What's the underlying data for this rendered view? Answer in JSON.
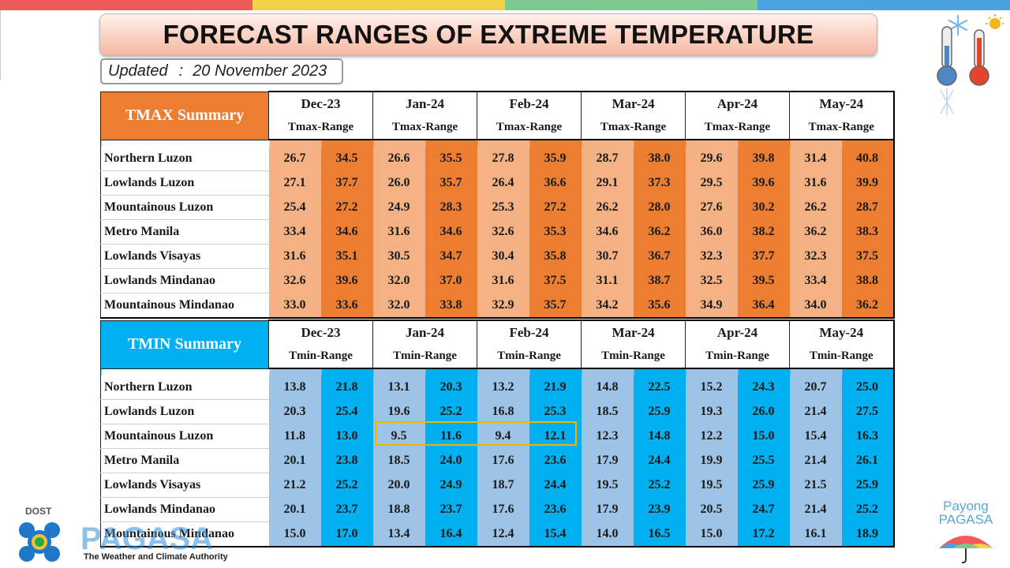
{
  "top_bar_colors": [
    "#ee5a5a",
    "#f2d24a",
    "#7ec98f",
    "#4aa3df"
  ],
  "title": "FORECAST RANGES OF EXTREME TEMPERATURE",
  "updated": {
    "label": "Updated",
    "separator": ":",
    "date": "20 November 2023"
  },
  "months": [
    "Dec-23",
    "Jan-24",
    "Feb-24",
    "Mar-24",
    "Apr-24",
    "May-24"
  ],
  "tmax": {
    "heading": "TMAX Summary",
    "sub_label": "Tmax-Range",
    "rows": [
      {
        "region": "Northern Luzon",
        "values": [
          "26.7",
          "34.5",
          "26.6",
          "35.5",
          "27.8",
          "35.9",
          "28.7",
          "38.0",
          "29.6",
          "39.8",
          "31.4",
          "40.8"
        ]
      },
      {
        "region": "Lowlands Luzon",
        "values": [
          "27.1",
          "37.7",
          "26.0",
          "35.7",
          "26.4",
          "36.6",
          "29.1",
          "37.3",
          "29.5",
          "39.6",
          "31.6",
          "39.9"
        ]
      },
      {
        "region": "Mountainous Luzon",
        "values": [
          "25.4",
          "27.2",
          "24.9",
          "28.3",
          "25.3",
          "27.2",
          "26.2",
          "28.0",
          "27.6",
          "30.2",
          "26.2",
          "28.7"
        ]
      },
      {
        "region": "Metro Manila",
        "values": [
          "33.4",
          "34.6",
          "31.6",
          "34.6",
          "32.6",
          "35.3",
          "34.6",
          "36.2",
          "36.0",
          "38.2",
          "36.2",
          "38.3"
        ]
      },
      {
        "region": "Lowlands Visayas",
        "values": [
          "31.6",
          "35.1",
          "30.5",
          "34.7",
          "30.4",
          "35.8",
          "30.7",
          "36.7",
          "32.3",
          "37.7",
          "32.3",
          "37.5"
        ]
      },
      {
        "region": "Lowlands Mindanao",
        "values": [
          "32.6",
          "39.6",
          "32.0",
          "37.0",
          "31.6",
          "37.5",
          "31.1",
          "38.7",
          "32.5",
          "39.5",
          "33.4",
          "38.8"
        ]
      },
      {
        "region": "Mountainous Mindanao",
        "values": [
          "33.0",
          "33.6",
          "32.0",
          "33.8",
          "32.9",
          "35.7",
          "34.2",
          "35.6",
          "34.9",
          "36.4",
          "34.0",
          "36.2"
        ]
      }
    ]
  },
  "tmin": {
    "heading": "TMIN Summary",
    "sub_label": "Tmin-Range",
    "rows": [
      {
        "region": "Northern Luzon",
        "values": [
          "13.8",
          "21.8",
          "13.1",
          "20.3",
          "13.2",
          "21.9",
          "14.8",
          "22.5",
          "15.2",
          "24.3",
          "20.7",
          "25.0"
        ]
      },
      {
        "region": "Lowlands Luzon",
        "values": [
          "20.3",
          "25.4",
          "19.6",
          "25.2",
          "16.8",
          "25.3",
          "18.5",
          "25.9",
          "19.3",
          "26.0",
          "21.4",
          "27.5"
        ]
      },
      {
        "region": "Mountainous Luzon",
        "values": [
          "11.8",
          "13.0",
          "9.5",
          "11.6",
          "9.4",
          "12.1",
          "12.3",
          "14.8",
          "12.2",
          "15.0",
          "15.4",
          "16.3"
        ]
      },
      {
        "region": "Metro Manila",
        "values": [
          "20.1",
          "23.8",
          "18.5",
          "24.0",
          "17.6",
          "23.6",
          "17.9",
          "24.4",
          "19.9",
          "25.5",
          "21.4",
          "26.1"
        ]
      },
      {
        "region": "Lowlands Visayas",
        "values": [
          "21.2",
          "25.2",
          "20.0",
          "24.9",
          "18.7",
          "24.4",
          "19.5",
          "25.2",
          "19.5",
          "25.9",
          "21.5",
          "25.9"
        ]
      },
      {
        "region": "Lowlands Mindanao",
        "values": [
          "20.1",
          "23.7",
          "18.8",
          "23.7",
          "17.6",
          "23.6",
          "17.9",
          "23.9",
          "20.5",
          "24.7",
          "21.4",
          "25.2"
        ]
      },
      {
        "region": "Mountainous Mindanao",
        "values": [
          "15.0",
          "17.0",
          "13.4",
          "16.4",
          "12.4",
          "15.4",
          "14.0",
          "16.5",
          "15.0",
          "17.2",
          "16.1",
          "18.9"
        ]
      }
    ]
  },
  "logos": {
    "dost_label": "DOST",
    "pagasa_wordmark": "PAGASA",
    "pagasa_tagline": "The Weather and Climate Authority",
    "payong_line1": "Payong",
    "payong_line2": "PAGASA"
  }
}
